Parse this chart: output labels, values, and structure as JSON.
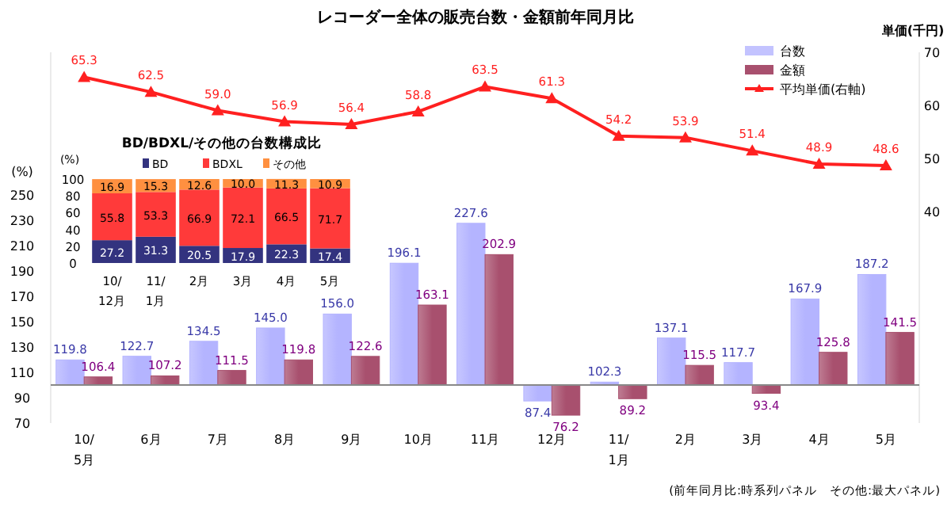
{
  "chart_data": [
    {
      "type": "bar",
      "title": "レコーダー全体の販売台数・金額前年同月比",
      "ylabel": "(%)",
      "y2label": "単価(千円)",
      "annotations": [
        "(前年同月比:時系列パネル　その他:最大パネル)"
      ],
      "categories": [
        "10/5月",
        "6月",
        "7月",
        "8月",
        "9月",
        "10月",
        "11月",
        "12月",
        "11/1月",
        "2月",
        "3月",
        "4月",
        "5月"
      ],
      "series": [
        {
          "name": "台数",
          "color": "#b4b4ff",
          "base": [
            100,
            100,
            100,
            100,
            100,
            100,
            100,
            100,
            100,
            100,
            100,
            100,
            100
          ],
          "values": [
            19.8,
            22.7,
            34.5,
            45.0,
            56.0,
            96.1,
            127.6,
            -12.6,
            2.3,
            37.1,
            17.7,
            67.9,
            87.2
          ],
          "value_labels": [
            "119.8",
            "122.7",
            "134.5",
            "145.0",
            "156.0",
            "196.1",
            "227.6",
            "87.4",
            "102.3",
            "137.1",
            "117.7",
            "167.9",
            "187.2"
          ]
        },
        {
          "name": "金額",
          "color": "#a8506e",
          "base": [
            100,
            100,
            100,
            100,
            100,
            100,
            100,
            100,
            100,
            100,
            100,
            100,
            100
          ],
          "values": [
            6.4,
            7.2,
            11.5,
            19.8,
            22.6,
            63.1,
            102.9,
            -23.8,
            -10.8,
            15.5,
            -6.6,
            25.8,
            41.5
          ],
          "value_labels": [
            "106.4",
            "107.2",
            "111.5",
            "119.8",
            "122.6",
            "163.1",
            "202.9",
            "76.2",
            "89.2",
            "115.5",
            "93.4",
            "125.8",
            "141.5"
          ]
        },
        {
          "name": "平均単価(右軸)",
          "type": "line",
          "axis": "y2",
          "color": "#ff2020",
          "marker": "triangle",
          "values": [
            65.3,
            62.5,
            59.0,
            56.9,
            56.4,
            58.8,
            63.5,
            61.3,
            54.2,
            53.9,
            51.4,
            48.9,
            48.6
          ],
          "value_labels": [
            "65.3",
            "62.5",
            "59.0",
            "56.9",
            "56.4",
            "58.8",
            "63.5",
            "61.3",
            "54.2",
            "53.9",
            "51.4",
            "48.9",
            "48.6"
          ]
        }
      ],
      "ref_lines": [
        {
          "axis": "y",
          "value": 100,
          "color": "#888888"
        }
      ],
      "ylim": [
        70,
        362.5
      ],
      "yticks": [
        70,
        90,
        110,
        130,
        150,
        170,
        190,
        210,
        230,
        250
      ],
      "y2lim": [
        0,
        70
      ],
      "y2ticks": [
        40,
        50,
        60,
        70
      ],
      "legend": "top right"
    },
    {
      "type": "bar",
      "title": "BD/BDXL/その他の台数構成比",
      "ylabel": "(%)",
      "stacked": true,
      "legend": "top",
      "categories": [
        "10/12月",
        "11/1月",
        "2月",
        "3月",
        "4月",
        "5月"
      ],
      "series": [
        {
          "name": "BD",
          "color": "#33337f",
          "values": [
            27.2,
            31.3,
            20.5,
            17.9,
            22.3,
            17.4
          ],
          "value_labels": [
            "27.2",
            "31.3",
            "20.5",
            "17.9",
            "22.3",
            "17.4"
          ]
        },
        {
          "name": "BDXL",
          "color": "#ff3a3a",
          "values": [
            55.8,
            53.3,
            66.9,
            72.1,
            66.5,
            71.7
          ],
          "value_labels": [
            "55.8",
            "53.3",
            "66.9",
            "72.1",
            "66.5",
            "71.7"
          ]
        },
        {
          "name": "その他",
          "color": "#ff9040",
          "values": [
            16.9,
            15.3,
            12.6,
            10.0,
            11.3,
            10.9
          ],
          "value_labels": [
            "16.9",
            "15.3",
            "12.6",
            "10.0",
            "11.3",
            "10.9"
          ]
        }
      ],
      "ylim": [
        0,
        100
      ],
      "yticks": [
        0,
        20,
        40,
        60,
        80,
        100
      ]
    }
  ]
}
